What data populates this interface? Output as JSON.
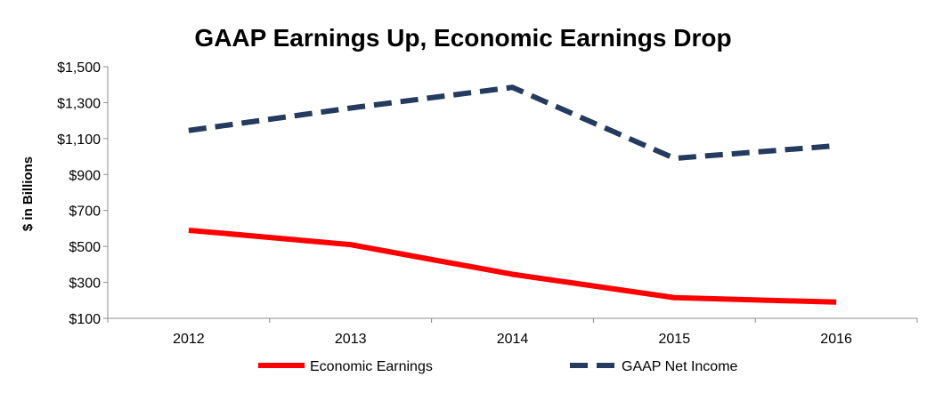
{
  "chart_data": {
    "type": "line",
    "title": "GAAP Earnings Up, Economic Earnings Drop",
    "xlabel": "",
    "ylabel": "$ in Billions",
    "categories": [
      "2012",
      "2013",
      "2014",
      "2015",
      "2016"
    ],
    "ylim": [
      100,
      1500
    ],
    "yticks": [
      100,
      300,
      500,
      700,
      900,
      1100,
      1300,
      1500
    ],
    "ytick_labels": [
      "$100",
      "$300",
      "$500",
      "$700",
      "$900",
      "$1,100",
      "$1,300",
      "$1,500"
    ],
    "grid": false,
    "legend_position": "bottom",
    "series": [
      {
        "name": "Economic Earnings",
        "values": [
          590,
          510,
          345,
          215,
          190
        ],
        "color": "#ff0000",
        "style": "solid"
      },
      {
        "name": "GAAP Net Income",
        "values": [
          1145,
          1270,
          1385,
          990,
          1060
        ],
        "color": "#243a5e",
        "style": "dashed"
      }
    ]
  }
}
